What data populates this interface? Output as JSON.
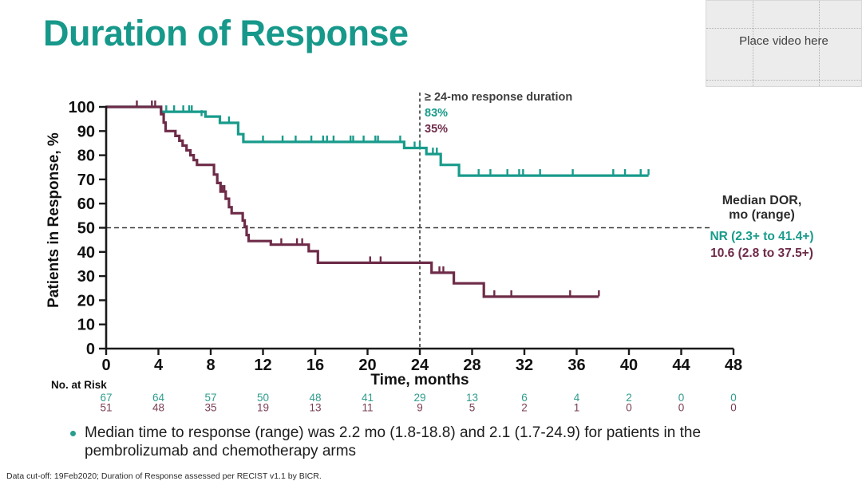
{
  "slide": {
    "title": "Duration of Response",
    "video_placeholder": "Place video here",
    "bullet": {
      "line1": "Median time to response (range) was 2.2 mo (1.8-18.8) and 2.1 (1.7-24.9) for patients in the",
      "line2": "pembrolizumab and chemotherapy arms"
    },
    "footer": "Data cut-off: 19Feb2020; Duration of Response assessed per RECIST v1.1 by BICR."
  },
  "colors": {
    "teal": "#189b8b",
    "maroon": "#6e2b48",
    "title_teal": "#16988a",
    "axis": "#1a1a1a",
    "dash": "#3a3a3a"
  },
  "chart_data": {
    "type": "line",
    "subtype": "kaplan-meier-step",
    "title": "Duration of Response",
    "xlabel": "Time, months",
    "ylabel": "Patients in Response, %",
    "xlim": [
      0,
      48
    ],
    "ylim": [
      0,
      100
    ],
    "x_ticks": [
      0,
      4,
      8,
      12,
      16,
      20,
      24,
      28,
      32,
      36,
      40,
      44,
      48
    ],
    "y_ticks": [
      0,
      10,
      20,
      30,
      40,
      50,
      60,
      70,
      80,
      90,
      100
    ],
    "grid": false,
    "legend_position": "none",
    "reference_lines": [
      {
        "orientation": "vertical",
        "x": 24,
        "style": "dashed"
      },
      {
        "orientation": "horizontal",
        "y": 50,
        "style": "dashed"
      }
    ],
    "series": [
      {
        "name": "pembrolizumab",
        "color": "#189b8b",
        "end": 41.5,
        "steps": [
          [
            0,
            100
          ],
          [
            4.2,
            98
          ],
          [
            7.6,
            96
          ],
          [
            8.7,
            93.4
          ],
          [
            10.1,
            88.7
          ],
          [
            10.5,
            85.5
          ],
          [
            22.8,
            83
          ],
          [
            24.5,
            80.5
          ],
          [
            25.6,
            76
          ],
          [
            27,
            71.6
          ]
        ],
        "censors": [
          [
            4.6,
            98
          ],
          [
            5.2,
            98
          ],
          [
            5.9,
            98
          ],
          [
            6.35,
            98
          ],
          [
            6.55,
            98
          ],
          [
            7.3,
            96
          ],
          [
            9.4,
            93.4
          ],
          [
            12,
            85.5
          ],
          [
            13.5,
            85.5
          ],
          [
            14.5,
            85.5
          ],
          [
            15.7,
            85.5
          ],
          [
            16.6,
            85.5
          ],
          [
            16.9,
            85.5
          ],
          [
            17.4,
            85.5
          ],
          [
            18.7,
            85.5
          ],
          [
            18.9,
            85.5
          ],
          [
            19.7,
            85.5
          ],
          [
            20.6,
            85.5
          ],
          [
            20.8,
            85.5
          ],
          [
            22.5,
            85.5
          ],
          [
            23.6,
            83
          ],
          [
            24,
            83
          ],
          [
            25,
            80.5
          ],
          [
            25.3,
            80.5
          ],
          [
            28.5,
            71.6
          ],
          [
            29.4,
            71.6
          ],
          [
            30.7,
            71.6
          ],
          [
            31.6,
            71.6
          ],
          [
            31.9,
            71.6
          ],
          [
            33.2,
            71.6
          ],
          [
            35.7,
            71.6
          ],
          [
            38.8,
            71.6
          ],
          [
            39.7,
            71.6
          ],
          [
            40.9,
            71.6
          ],
          [
            41.5,
            71.6
          ]
        ]
      },
      {
        "name": "chemotherapy",
        "color": "#6e2b48",
        "end": 37.7,
        "steps": [
          [
            0,
            100
          ],
          [
            4.2,
            97
          ],
          [
            4.4,
            93.5
          ],
          [
            4.55,
            90
          ],
          [
            5.3,
            88
          ],
          [
            5.6,
            86
          ],
          [
            5.85,
            84
          ],
          [
            6.15,
            82
          ],
          [
            6.45,
            80
          ],
          [
            6.7,
            78
          ],
          [
            6.95,
            76
          ],
          [
            8.25,
            72
          ],
          [
            8.5,
            68.5
          ],
          [
            8.75,
            65
          ],
          [
            9.15,
            62
          ],
          [
            9.4,
            58.5
          ],
          [
            9.6,
            56
          ],
          [
            10.45,
            53
          ],
          [
            10.6,
            50.5
          ],
          [
            10.75,
            47
          ],
          [
            10.9,
            44.5
          ],
          [
            12.6,
            43
          ],
          [
            15.5,
            40.3
          ],
          [
            16.2,
            35.5
          ],
          [
            24.9,
            31.4
          ],
          [
            26.6,
            27
          ],
          [
            28.9,
            21.5
          ]
        ],
        "censors": [
          [
            2.35,
            100
          ],
          [
            3.5,
            100
          ],
          [
            3.75,
            100
          ],
          [
            8.9,
            65
          ],
          [
            9.05,
            65
          ],
          [
            13.4,
            43
          ],
          [
            14.6,
            43
          ],
          [
            15,
            43
          ],
          [
            20.2,
            35.5
          ],
          [
            21,
            35.5
          ],
          [
            25.5,
            31.4
          ],
          [
            25.8,
            31.4
          ],
          [
            29.7,
            21.5
          ],
          [
            31,
            21.5
          ],
          [
            35.5,
            21.5
          ],
          [
            37.7,
            21.5
          ]
        ]
      }
    ],
    "annotations": {
      "at24": {
        "title": "≥ 24-mo response duration",
        "pembro_pct": "83%",
        "chemo_pct": "35%"
      },
      "median": {
        "line1": "Median DOR,",
        "line2": "mo (range)",
        "pembro": "NR (2.3+ to 41.4+)",
        "chemo": "10.6 (2.8 to 37.5+)"
      }
    },
    "risk_table": {
      "label": "No. at Risk",
      "times": [
        0,
        4,
        8,
        12,
        16,
        20,
        24,
        28,
        32,
        36,
        40,
        44,
        48
      ],
      "rows": [
        {
          "name": "pembrolizumab",
          "color": "#2f9d8d",
          "values": [
            67,
            64,
            57,
            50,
            48,
            41,
            29,
            13,
            6,
            4,
            2,
            0,
            0
          ]
        },
        {
          "name": "chemotherapy",
          "color": "#7a3d55",
          "values": [
            51,
            48,
            35,
            19,
            13,
            11,
            9,
            5,
            2,
            1,
            0,
            0,
            0
          ]
        }
      ]
    }
  }
}
